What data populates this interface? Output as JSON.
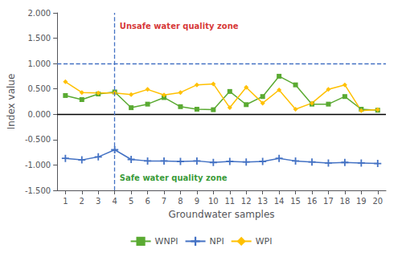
{
  "chart_data": {
    "type": "line",
    "xlabel": "Groundwater samples",
    "ylabel": "Index value",
    "x": [
      1,
      2,
      3,
      4,
      5,
      6,
      7,
      8,
      9,
      10,
      11,
      12,
      13,
      14,
      15,
      16,
      17,
      18,
      19,
      20
    ],
    "series": [
      {
        "name": "WNPI",
        "color": "#5aaa32",
        "marker": "square",
        "values": [
          0.37,
          0.29,
          0.4,
          0.44,
          0.13,
          0.2,
          0.33,
          0.15,
          0.1,
          0.09,
          0.45,
          0.19,
          0.35,
          0.75,
          0.58,
          0.2,
          0.2,
          0.35,
          0.1,
          0.08
        ]
      },
      {
        "name": "NPI",
        "color": "#4472c4",
        "marker": "plus",
        "values": [
          -0.87,
          -0.9,
          -0.84,
          -0.7,
          -0.89,
          -0.92,
          -0.92,
          -0.93,
          -0.92,
          -0.95,
          -0.93,
          -0.94,
          -0.93,
          -0.87,
          -0.92,
          -0.94,
          -0.96,
          -0.95,
          -0.96,
          -0.97
        ]
      },
      {
        "name": "WPI",
        "color": "#ffc000",
        "marker": "diamond",
        "values": [
          0.64,
          0.43,
          0.42,
          0.42,
          0.39,
          0.49,
          0.38,
          0.43,
          0.58,
          0.6,
          0.13,
          0.53,
          0.22,
          0.48,
          0.1,
          0.22,
          0.49,
          0.58,
          0.07,
          0.09
        ]
      }
    ],
    "xlim": [
      0.5,
      20.5
    ],
    "xticks": [
      1,
      2,
      3,
      4,
      5,
      6,
      7,
      8,
      9,
      10,
      11,
      12,
      13,
      14,
      15,
      16,
      17,
      18,
      19,
      20
    ],
    "ylim": [
      -1.5,
      2.0
    ],
    "yticks": [
      {
        "value": -1.5,
        "label": "-1.500"
      },
      {
        "value": -1.0,
        "label": "-1.000"
      },
      {
        "value": -0.5,
        "label": "-0.500"
      },
      {
        "value": 0.0,
        "label": "0.000"
      },
      {
        "value": 0.5,
        "label": "0.500"
      },
      {
        "value": 1.0,
        "label": "1.000"
      },
      {
        "value": 1.5,
        "label": "1.500"
      },
      {
        "value": 2.0,
        "label": "2.000"
      }
    ],
    "hlines": [
      {
        "value": 1.0,
        "color": "#4472c4",
        "line_style": "dashed"
      },
      {
        "value": 0,
        "color": "black",
        "line_style": "solid"
      }
    ],
    "vlines": [
      {
        "value": 4,
        "color": "#4472c4",
        "line_style": "dashed"
      }
    ],
    "annotations": [
      {
        "text": "Unsafe water quality zone",
        "x": 4.3,
        "y": 1.82,
        "color": "#cc0000"
      },
      {
        "text": "Safe water quality zone",
        "x": 4.3,
        "y": -1.18,
        "color": "#008000"
      }
    ],
    "grid": false,
    "legend": "bottom"
  }
}
